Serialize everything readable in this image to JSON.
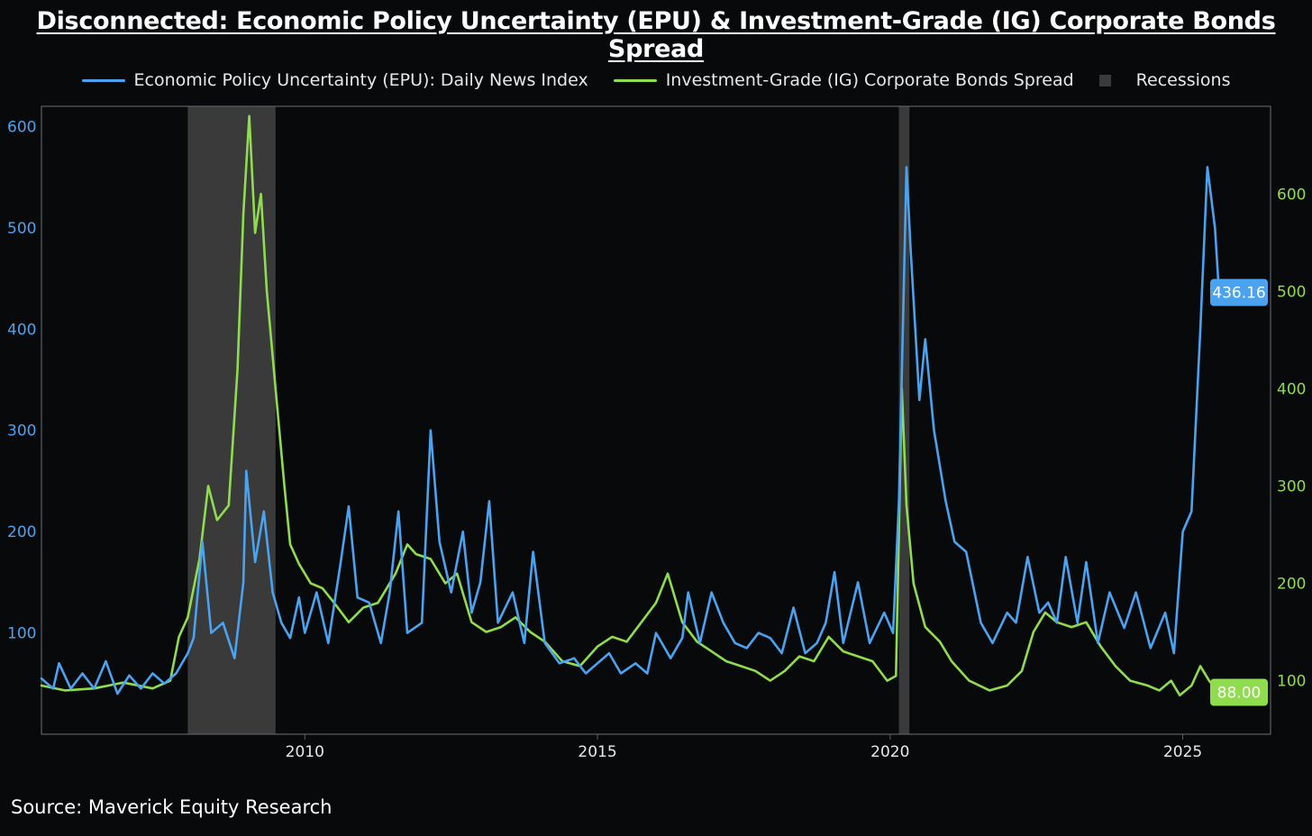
{
  "title": "Disconnected: Economic Policy Uncertainty (EPU) & Investment-Grade (IG) Corporate Bonds Spread",
  "source": "Source: Maverick Equity Research",
  "colors": {
    "background": "#08090b",
    "epu": "#4aa3f0",
    "ig": "#8fdc4e",
    "recession": "#3a3a3a",
    "axis_left": "#4aa3f0",
    "axis_right": "#8fdc4e"
  },
  "chart_data": {
    "type": "line",
    "title": "Disconnected: Economic Policy Uncertainty (EPU) & Investment-Grade (IG) Corporate Bonds Spread",
    "x_range": [
      2005.5,
      2026.5
    ],
    "x_ticks": [
      2010,
      2015,
      2020,
      2025
    ],
    "x_tick_labels": [
      "2010",
      "2015",
      "2020",
      "2025"
    ],
    "y_left": {
      "range": [
        0,
        620
      ],
      "ticks": [
        100,
        200,
        300,
        400,
        500,
        600
      ],
      "tick_labels": [
        "100",
        "200",
        "300",
        "400",
        "500",
        "600"
      ]
    },
    "y_right": {
      "range": [
        45,
        690
      ],
      "ticks": [
        100,
        200,
        300,
        400,
        500,
        600
      ],
      "tick_labels": [
        "100",
        "200",
        "300",
        "400",
        "500",
        "600"
      ]
    },
    "legend": [
      "Economic Policy Uncertainty (EPU): Daily News Index",
      "Investment-Grade (IG) Corporate Bonds Spread",
      "Recessions"
    ],
    "recessions": [
      [
        2008.0,
        2009.5
      ],
      [
        2020.15,
        2020.33
      ]
    ],
    "series": [
      {
        "name": "Economic Policy Uncertainty (EPU): Daily News Index",
        "axis": "left",
        "last_value_label": "436.16",
        "points": [
          [
            2005.5,
            55
          ],
          [
            2005.7,
            45
          ],
          [
            2005.8,
            70
          ],
          [
            2006.0,
            45
          ],
          [
            2006.2,
            60
          ],
          [
            2006.4,
            45
          ],
          [
            2006.6,
            72
          ],
          [
            2006.8,
            40
          ],
          [
            2007.0,
            58
          ],
          [
            2007.2,
            45
          ],
          [
            2007.4,
            60
          ],
          [
            2007.6,
            50
          ],
          [
            2007.8,
            60
          ],
          [
            2008.0,
            80
          ],
          [
            2008.1,
            95
          ],
          [
            2008.25,
            190
          ],
          [
            2008.4,
            100
          ],
          [
            2008.6,
            110
          ],
          [
            2008.8,
            75
          ],
          [
            2008.95,
            150
          ],
          [
            2009.0,
            260
          ],
          [
            2009.15,
            170
          ],
          [
            2009.3,
            220
          ],
          [
            2009.45,
            140
          ],
          [
            2009.6,
            110
          ],
          [
            2009.75,
            95
          ],
          [
            2009.9,
            135
          ],
          [
            2010.0,
            100
          ],
          [
            2010.2,
            140
          ],
          [
            2010.4,
            90
          ],
          [
            2010.6,
            165
          ],
          [
            2010.75,
            225
          ],
          [
            2010.9,
            135
          ],
          [
            2011.1,
            130
          ],
          [
            2011.3,
            90
          ],
          [
            2011.45,
            140
          ],
          [
            2011.6,
            220
          ],
          [
            2011.75,
            100
          ],
          [
            2012.0,
            110
          ],
          [
            2012.15,
            300
          ],
          [
            2012.3,
            190
          ],
          [
            2012.5,
            140
          ],
          [
            2012.7,
            200
          ],
          [
            2012.85,
            120
          ],
          [
            2013.0,
            150
          ],
          [
            2013.15,
            230
          ],
          [
            2013.3,
            110
          ],
          [
            2013.55,
            140
          ],
          [
            2013.75,
            90
          ],
          [
            2013.9,
            180
          ],
          [
            2014.1,
            90
          ],
          [
            2014.35,
            70
          ],
          [
            2014.6,
            75
          ],
          [
            2014.8,
            60
          ],
          [
            2015.0,
            70
          ],
          [
            2015.2,
            80
          ],
          [
            2015.4,
            60
          ],
          [
            2015.65,
            70
          ],
          [
            2015.85,
            60
          ],
          [
            2016.0,
            100
          ],
          [
            2016.25,
            75
          ],
          [
            2016.45,
            95
          ],
          [
            2016.55,
            140
          ],
          [
            2016.75,
            90
          ],
          [
            2016.95,
            140
          ],
          [
            2017.15,
            110
          ],
          [
            2017.35,
            90
          ],
          [
            2017.55,
            85
          ],
          [
            2017.75,
            100
          ],
          [
            2017.95,
            95
          ],
          [
            2018.15,
            80
          ],
          [
            2018.35,
            125
          ],
          [
            2018.55,
            80
          ],
          [
            2018.75,
            90
          ],
          [
            2018.9,
            110
          ],
          [
            2019.05,
            160
          ],
          [
            2019.2,
            90
          ],
          [
            2019.45,
            150
          ],
          [
            2019.65,
            90
          ],
          [
            2019.9,
            120
          ],
          [
            2020.05,
            100
          ],
          [
            2020.15,
            230
          ],
          [
            2020.28,
            560
          ],
          [
            2020.35,
            480
          ],
          [
            2020.5,
            330
          ],
          [
            2020.6,
            390
          ],
          [
            2020.75,
            300
          ],
          [
            2020.95,
            230
          ],
          [
            2021.1,
            190
          ],
          [
            2021.3,
            180
          ],
          [
            2021.55,
            110
          ],
          [
            2021.75,
            90
          ],
          [
            2022.0,
            120
          ],
          [
            2022.15,
            110
          ],
          [
            2022.35,
            175
          ],
          [
            2022.55,
            120
          ],
          [
            2022.7,
            130
          ],
          [
            2022.85,
            110
          ],
          [
            2023.0,
            175
          ],
          [
            2023.2,
            110
          ],
          [
            2023.35,
            170
          ],
          [
            2023.55,
            90
          ],
          [
            2023.75,
            140
          ],
          [
            2024.0,
            105
          ],
          [
            2024.2,
            140
          ],
          [
            2024.45,
            85
          ],
          [
            2024.7,
            120
          ],
          [
            2024.85,
            80
          ],
          [
            2025.0,
            200
          ],
          [
            2025.15,
            220
          ],
          [
            2025.3,
            400
          ],
          [
            2025.42,
            560
          ],
          [
            2025.55,
            500
          ],
          [
            2025.62,
            436.16
          ]
        ]
      },
      {
        "name": "Investment-Grade (IG) Corporate Bonds Spread",
        "axis": "right",
        "last_value_label": "88.00",
        "points": [
          [
            2005.5,
            95
          ],
          [
            2005.9,
            90
          ],
          [
            2006.4,
            92
          ],
          [
            2006.9,
            98
          ],
          [
            2007.4,
            92
          ],
          [
            2007.7,
            100
          ],
          [
            2007.85,
            145
          ],
          [
            2008.0,
            165
          ],
          [
            2008.2,
            225
          ],
          [
            2008.35,
            300
          ],
          [
            2008.5,
            265
          ],
          [
            2008.7,
            280
          ],
          [
            2008.85,
            420
          ],
          [
            2008.95,
            580
          ],
          [
            2009.05,
            680
          ],
          [
            2009.15,
            560
          ],
          [
            2009.25,
            600
          ],
          [
            2009.35,
            500
          ],
          [
            2009.5,
            400
          ],
          [
            2009.65,
            300
          ],
          [
            2009.75,
            240
          ],
          [
            2009.9,
            220
          ],
          [
            2010.1,
            200
          ],
          [
            2010.3,
            195
          ],
          [
            2010.5,
            180
          ],
          [
            2010.75,
            160
          ],
          [
            2011.0,
            175
          ],
          [
            2011.25,
            180
          ],
          [
            2011.55,
            210
          ],
          [
            2011.75,
            240
          ],
          [
            2011.9,
            230
          ],
          [
            2012.15,
            225
          ],
          [
            2012.4,
            200
          ],
          [
            2012.6,
            210
          ],
          [
            2012.85,
            160
          ],
          [
            2013.1,
            150
          ],
          [
            2013.35,
            155
          ],
          [
            2013.6,
            165
          ],
          [
            2013.85,
            150
          ],
          [
            2014.1,
            140
          ],
          [
            2014.4,
            120
          ],
          [
            2014.7,
            115
          ],
          [
            2015.0,
            135
          ],
          [
            2015.25,
            145
          ],
          [
            2015.5,
            140
          ],
          [
            2015.75,
            160
          ],
          [
            2016.0,
            180
          ],
          [
            2016.2,
            210
          ],
          [
            2016.45,
            160
          ],
          [
            2016.7,
            140
          ],
          [
            2016.95,
            130
          ],
          [
            2017.2,
            120
          ],
          [
            2017.45,
            115
          ],
          [
            2017.7,
            110
          ],
          [
            2017.95,
            100
          ],
          [
            2018.2,
            110
          ],
          [
            2018.45,
            125
          ],
          [
            2018.7,
            120
          ],
          [
            2018.95,
            145
          ],
          [
            2019.2,
            130
          ],
          [
            2019.45,
            125
          ],
          [
            2019.7,
            120
          ],
          [
            2019.95,
            100
          ],
          [
            2020.1,
            105
          ],
          [
            2020.2,
            400
          ],
          [
            2020.28,
            280
          ],
          [
            2020.4,
            200
          ],
          [
            2020.6,
            155
          ],
          [
            2020.85,
            140
          ],
          [
            2021.05,
            120
          ],
          [
            2021.35,
            100
          ],
          [
            2021.7,
            90
          ],
          [
            2022.0,
            95
          ],
          [
            2022.25,
            110
          ],
          [
            2022.45,
            150
          ],
          [
            2022.65,
            170
          ],
          [
            2022.85,
            160
          ],
          [
            2023.1,
            155
          ],
          [
            2023.35,
            160
          ],
          [
            2023.6,
            135
          ],
          [
            2023.85,
            115
          ],
          [
            2024.1,
            100
          ],
          [
            2024.4,
            95
          ],
          [
            2024.6,
            90
          ],
          [
            2024.8,
            100
          ],
          [
            2024.95,
            85
          ],
          [
            2025.15,
            95
          ],
          [
            2025.3,
            115
          ],
          [
            2025.45,
            100
          ],
          [
            2025.62,
            88
          ]
        ]
      }
    ]
  }
}
